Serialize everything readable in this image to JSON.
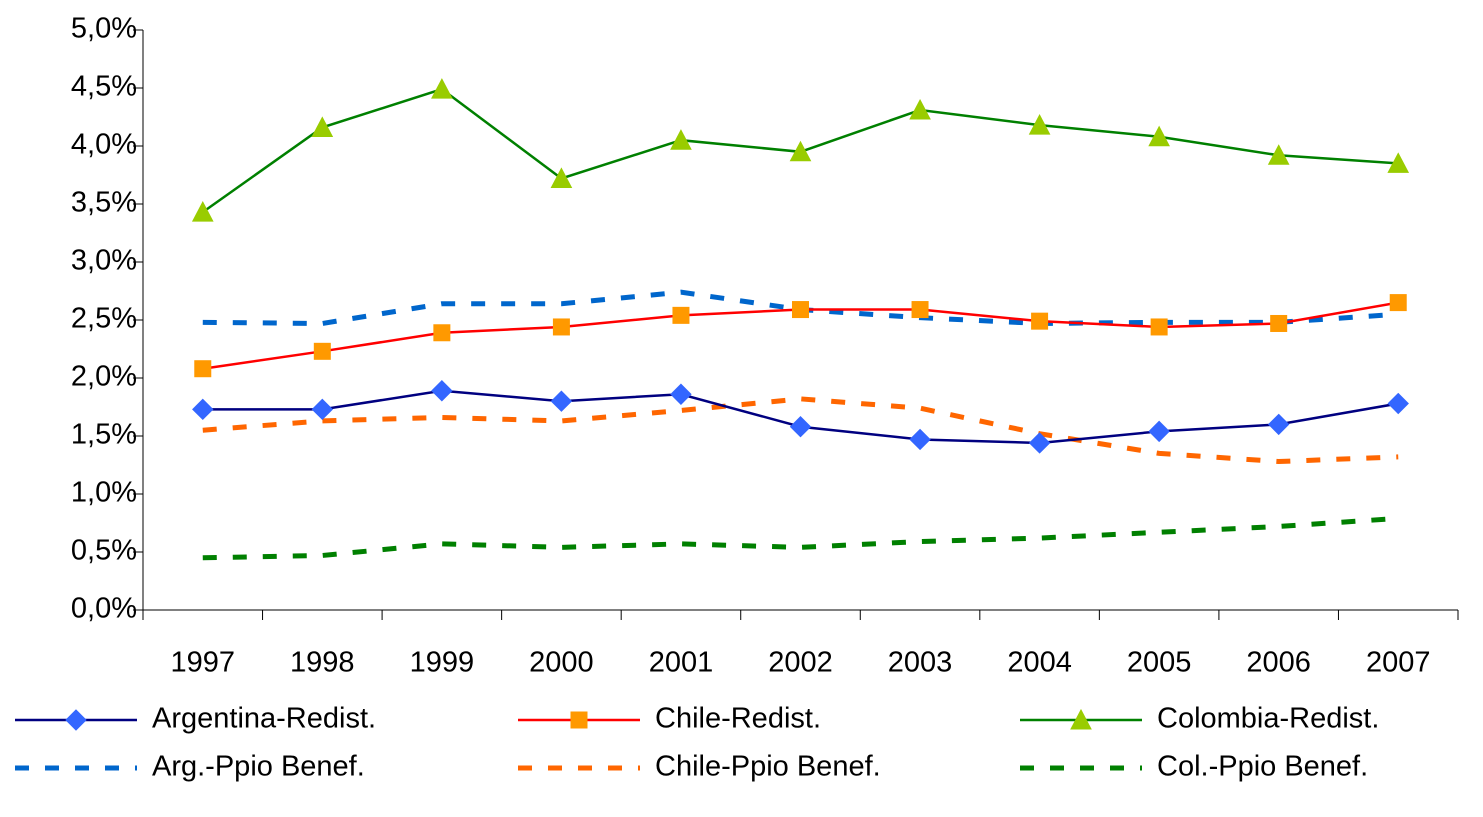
{
  "chart_data": {
    "type": "line",
    "categories": [
      "1997",
      "1998",
      "1999",
      "2000",
      "2001",
      "2002",
      "2003",
      "2004",
      "2005",
      "2006",
      "2007"
    ],
    "ylim": [
      0,
      5
    ],
    "yticks": [
      {
        "value": 0,
        "label": "0,0%"
      },
      {
        "value": 0.5,
        "label": "0,5%"
      },
      {
        "value": 1,
        "label": "1,0%"
      },
      {
        "value": 1.5,
        "label": "1,5%"
      },
      {
        "value": 2,
        "label": "2,0%"
      },
      {
        "value": 2.5,
        "label": "2,5%"
      },
      {
        "value": 3,
        "label": "3,0%"
      },
      {
        "value": 3.5,
        "label": "3,5%"
      },
      {
        "value": 4,
        "label": "4,0%"
      },
      {
        "value": 4.5,
        "label": "4,5%"
      },
      {
        "value": 5,
        "label": "5,0%"
      }
    ],
    "series": [
      {
        "name": "Argentina-Redist.",
        "color": "#000080",
        "marker": "diamond",
        "marker_color": "#3366ff",
        "dashed": false,
        "values": [
          1.73,
          1.73,
          1.89,
          1.8,
          1.86,
          1.58,
          1.47,
          1.44,
          1.54,
          1.6,
          1.78
        ]
      },
      {
        "name": "Chile-Redist.",
        "color": "#ff0000",
        "marker": "square",
        "marker_color": "#ff9900",
        "dashed": false,
        "values": [
          2.08,
          2.23,
          2.39,
          2.44,
          2.54,
          2.59,
          2.59,
          2.49,
          2.44,
          2.47,
          2.65
        ]
      },
      {
        "name": "Colombia-Redist.",
        "color": "#008000",
        "marker": "triangle",
        "marker_color": "#99cc00",
        "dashed": false,
        "values": [
          3.43,
          4.16,
          4.49,
          3.72,
          4.05,
          3.95,
          4.31,
          4.18,
          4.08,
          3.92,
          3.85
        ]
      },
      {
        "name": "Arg.-Ppio Benef.",
        "color": "#0066cc",
        "dashed": true,
        "values": [
          2.48,
          2.47,
          2.64,
          2.64,
          2.74,
          2.59,
          2.52,
          2.47,
          2.48,
          2.48,
          2.55
        ]
      },
      {
        "name": "Chile-Ppio Benef.",
        "color": "#ff6600",
        "dashed": true,
        "values": [
          1.55,
          1.63,
          1.66,
          1.63,
          1.72,
          1.82,
          1.74,
          1.52,
          1.35,
          1.28,
          1.32
        ]
      },
      {
        "name": "Col.-Ppio Benef.",
        "color": "#008000",
        "dashed": true,
        "values": [
          0.45,
          0.47,
          0.57,
          0.54,
          0.57,
          0.54,
          0.59,
          0.62,
          0.67,
          0.72,
          0.79
        ]
      }
    ]
  }
}
